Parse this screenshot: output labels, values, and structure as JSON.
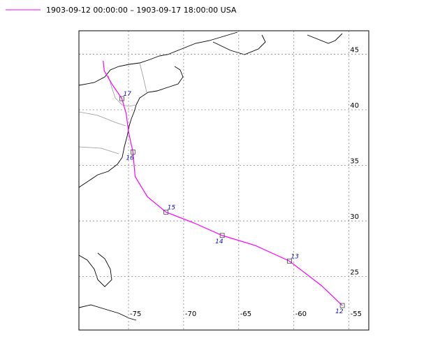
{
  "map": {
    "title": "1903-09-12 00:00:00 – 1903-09-17 18:00:00  USA",
    "track_color": "#ff00ff",
    "xlim": [
      -79.5,
      -53.2
    ],
    "ylim": [
      20.2,
      47.1
    ],
    "xticks": [
      -75,
      -70,
      -65,
      -60,
      -55
    ],
    "yticks": [
      25,
      30,
      35,
      40,
      45
    ],
    "grid": true,
    "track": {
      "lon": [
        -55.6,
        -57.5,
        -60.4,
        -63.5,
        -66.5,
        -69.0,
        -71.6,
        -73.3,
        -74.4,
        -74.6,
        -75.0,
        -75.2,
        -75.6,
        -76.5,
        -77.2,
        -77.3
      ],
      "lat": [
        22.4,
        24.2,
        26.4,
        27.8,
        28.7,
        29.8,
        30.8,
        32.2,
        34.0,
        36.2,
        38.0,
        39.6,
        41.0,
        42.3,
        43.5,
        44.4
      ],
      "labels": [
        "12",
        null,
        "13",
        null,
        "14",
        null,
        "15",
        null,
        null,
        "16",
        null,
        null,
        "17",
        null,
        null,
        null
      ]
    }
  }
}
